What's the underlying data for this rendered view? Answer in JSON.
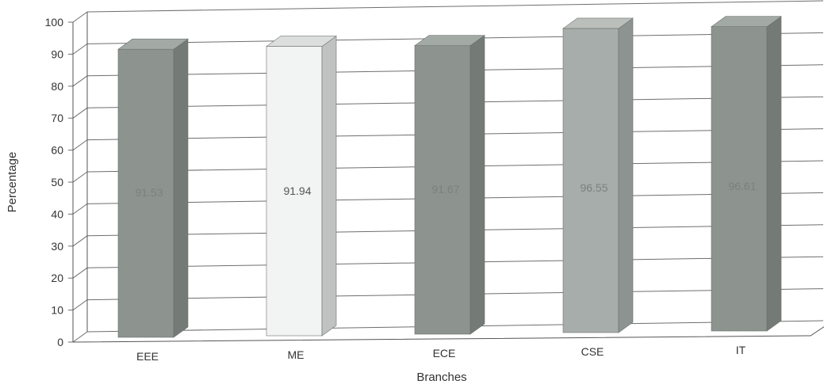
{
  "chart_data": {
    "type": "bar",
    "title": "",
    "xlabel": "Branches",
    "ylabel": "Percentage",
    "ylim": [
      0,
      100
    ],
    "yticks": [
      "0",
      "10",
      "20",
      "30",
      "40",
      "50",
      "60",
      "70",
      "80",
      "90",
      "100"
    ],
    "categories": [
      "EEE",
      "ME",
      "ECE",
      "CSE",
      "IT"
    ],
    "values": [
      91.53,
      91.94,
      91.67,
      96.55,
      96.61
    ],
    "value_labels": [
      "91.53",
      "91.94",
      "91.67",
      "96.55",
      "96.61"
    ],
    "grid": true,
    "style": "3d",
    "colors": {
      "bar_dark_front": "#8d948f",
      "bar_dark_side": "#747b76",
      "bar_dark_top": "#a3aaa5",
      "bar_light_front": "#f2f3f3",
      "bar_light_side": "#bfc2c1",
      "bar_light_top": "#dcdedd",
      "bar_mid_front": "#a7adaa",
      "bar_mid_side": "#8d9390",
      "bar_mid_top": "#babfbc",
      "grid": "#6e6e6e"
    },
    "bar_color_keys": [
      "dark",
      "light",
      "dark",
      "mid",
      "dark"
    ]
  }
}
